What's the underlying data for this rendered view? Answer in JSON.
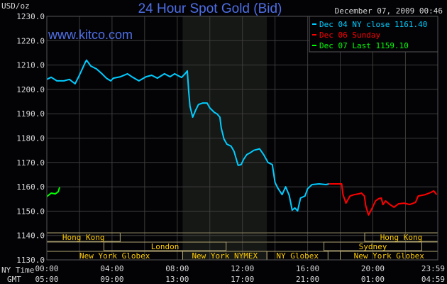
{
  "chart_data": {
    "type": "line",
    "title": "24 Hour Spot Gold (Bid)",
    "watermark": "www.kitco.com",
    "timestamp": "December 07, 2009 00:46",
    "ylabel": "USD/oz",
    "ylim": [
      1130,
      1230
    ],
    "yticks": [
      "1230.0",
      "1220.0",
      "1210.0",
      "1200.0",
      "1190.0",
      "1180.0",
      "1170.0",
      "1160.0",
      "1150.0",
      "1140.0",
      "1130.0"
    ],
    "xrow_labels": [
      "NY Time",
      "GMT"
    ],
    "xticks_ny": [
      "00:00",
      "04:00",
      "08:00",
      "12:00",
      "16:00",
      "20:00",
      "23:59"
    ],
    "xticks_gmt": [
      "05:00",
      "09:00",
      "13:00",
      "17:00",
      "21:00",
      "01:00",
      "04:59"
    ],
    "grid": true,
    "legend_position": "top-right",
    "shaded_session": [
      "08:20",
      "13:30"
    ],
    "series": [
      {
        "name": "Dec 04 NY close 1161.40",
        "color": "#00ccff",
        "points": [
          [
            "00:00",
            1204.1
          ],
          [
            "00:16",
            1205.0
          ],
          [
            "00:37",
            1203.5
          ],
          [
            "01:03",
            1203.5
          ],
          [
            "01:23",
            1204.1
          ],
          [
            "01:44",
            1202.3
          ],
          [
            "02:00",
            1205.8
          ],
          [
            "02:21",
            1211.0
          ],
          [
            "02:26",
            1212.0
          ],
          [
            "02:42",
            1209.6
          ],
          [
            "03:03",
            1208.4
          ],
          [
            "03:23",
            1206.4
          ],
          [
            "03:39",
            1204.6
          ],
          [
            "03:55",
            1203.5
          ],
          [
            "04:05",
            1204.6
          ],
          [
            "04:31",
            1205.2
          ],
          [
            "04:57",
            1206.4
          ],
          [
            "05:13",
            1205.2
          ],
          [
            "05:39",
            1203.5
          ],
          [
            "06:05",
            1205.2
          ],
          [
            "06:26",
            1205.8
          ],
          [
            "06:47",
            1204.6
          ],
          [
            "07:13",
            1206.4
          ],
          [
            "07:34",
            1205.2
          ],
          [
            "07:50",
            1206.4
          ],
          [
            "08:16",
            1204.9
          ],
          [
            "08:31",
            1206.7
          ],
          [
            "08:37",
            1207.6
          ],
          [
            "08:42",
            1199.4
          ],
          [
            "08:47",
            1193.0
          ],
          [
            "08:57",
            1188.6
          ],
          [
            "09:08",
            1191.5
          ],
          [
            "09:18",
            1193.8
          ],
          [
            "09:34",
            1194.4
          ],
          [
            "09:50",
            1194.4
          ],
          [
            "10:00",
            1192.4
          ],
          [
            "10:16",
            1190.6
          ],
          [
            "10:26",
            1190.0
          ],
          [
            "10:37",
            1188.6
          ],
          [
            "10:42",
            1184.2
          ],
          [
            "10:52",
            1179.6
          ],
          [
            "11:03",
            1177.5
          ],
          [
            "11:18",
            1176.7
          ],
          [
            "11:29",
            1174.6
          ],
          [
            "11:44",
            1168.8
          ],
          [
            "11:55",
            1169.1
          ],
          [
            "12:05",
            1171.4
          ],
          [
            "12:16",
            1173.2
          ],
          [
            "12:26",
            1173.8
          ],
          [
            "12:42",
            1175.0
          ],
          [
            "13:03",
            1175.6
          ],
          [
            "13:18",
            1173.2
          ],
          [
            "13:34",
            1170.0
          ],
          [
            "13:50",
            1169.1
          ],
          [
            "14:00",
            1161.8
          ],
          [
            "14:10",
            1159.5
          ],
          [
            "14:26",
            1156.8
          ],
          [
            "14:39",
            1160.0
          ],
          [
            "14:52",
            1156.5
          ],
          [
            "15:03",
            1150.4
          ],
          [
            "15:13",
            1151.3
          ],
          [
            "15:23",
            1150.1
          ],
          [
            "15:34",
            1155.4
          ],
          [
            "15:50",
            1156.2
          ],
          [
            "16:00",
            1159.2
          ],
          [
            "16:16",
            1160.9
          ],
          [
            "16:42",
            1161.2
          ],
          [
            "17:08",
            1160.9
          ],
          [
            "17:18",
            1161.2
          ]
        ]
      },
      {
        "name": "Dec 06 Sunday",
        "color": "#ff0000",
        "points": [
          [
            "17:18",
            1161.2
          ],
          [
            "18:05",
            1161.2
          ],
          [
            "18:10",
            1156.8
          ],
          [
            "18:21",
            1153.3
          ],
          [
            "18:36",
            1156.2
          ],
          [
            "18:52",
            1156.8
          ],
          [
            "19:08",
            1157.1
          ],
          [
            "19:18",
            1157.4
          ],
          [
            "19:29",
            1156.2
          ],
          [
            "19:34",
            1152.2
          ],
          [
            "19:44",
            1148.4
          ],
          [
            "19:55",
            1150.7
          ],
          [
            "20:10",
            1154.2
          ],
          [
            "20:21",
            1155.1
          ],
          [
            "20:31",
            1155.4
          ],
          [
            "20:37",
            1152.7
          ],
          [
            "20:47",
            1154.2
          ],
          [
            "21:03",
            1152.7
          ],
          [
            "21:18",
            1151.6
          ],
          [
            "21:34",
            1153.0
          ],
          [
            "21:55",
            1153.3
          ],
          [
            "22:16",
            1152.7
          ],
          [
            "22:37",
            1153.6
          ],
          [
            "22:47",
            1156.2
          ],
          [
            "23:13",
            1156.8
          ],
          [
            "23:34",
            1157.7
          ],
          [
            "23:44",
            1158.3
          ],
          [
            "23:55",
            1156.8
          ]
        ]
      },
      {
        "name": "Dec 07 Last 1159.10",
        "color": "#00ff00",
        "points": [
          [
            "00:00",
            1156.0
          ],
          [
            "00:16",
            1157.4
          ],
          [
            "00:31",
            1157.1
          ],
          [
            "00:42",
            1158.0
          ],
          [
            "00:47",
            1159.8
          ]
        ]
      }
    ],
    "sessions": [
      {
        "label": "Hong Kong",
        "row": 0,
        "start": "00:00",
        "end": "04:30"
      },
      {
        "label": "London",
        "row": 1,
        "start": "03:30",
        "end": "11:00"
      },
      {
        "label": "New York Globex",
        "row": 2,
        "start": "00:00",
        "end": "08:20"
      },
      {
        "label": "New York NYMEX",
        "row": 2,
        "start": "08:20",
        "end": "13:30"
      },
      {
        "label": "NY Globex",
        "row": 2,
        "start": "13:30",
        "end": "17:15"
      },
      {
        "label": "Sydney",
        "row": 1,
        "start": "17:00",
        "end": "23:00"
      },
      {
        "label": "Hong Kong",
        "row": 0,
        "start": "19:30",
        "end": "23:59"
      },
      {
        "label": "New York Globex",
        "row": 2,
        "start": "18:00",
        "end": "23:59"
      }
    ]
  }
}
